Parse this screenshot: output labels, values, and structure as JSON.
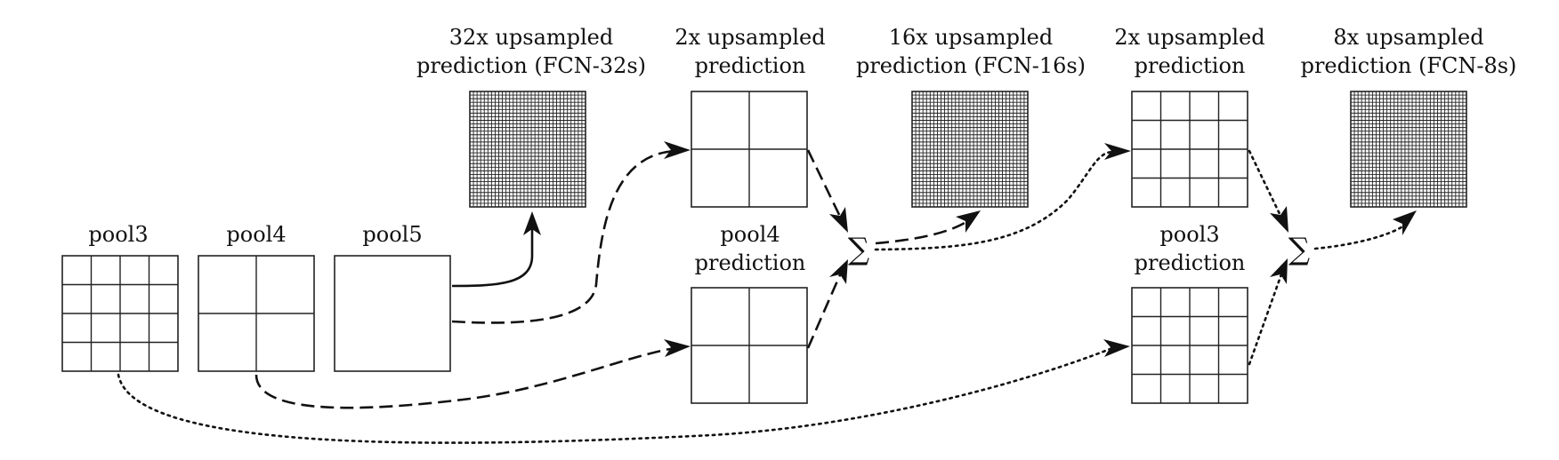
{
  "labels": {
    "pool3": "pool3",
    "pool4": "pool4",
    "pool5": "pool5",
    "fcn32_line1": "32x upsampled",
    "fcn32_line2": "prediction (FCN-32s)",
    "up2a_line1": "2x upsampled",
    "up2a_line2": "prediction",
    "pool4pred_line1": "pool4",
    "pool4pred_line2": "prediction",
    "fcn16_line1": "16x upsampled",
    "fcn16_line2": "prediction (FCN-16s)",
    "up2b_line1": "2x upsampled",
    "up2b_line2": "prediction",
    "pool3pred_line1": "pool3",
    "pool3pred_line2": "prediction",
    "fcn8_line1": "8x upsampled",
    "fcn8_line2": "prediction (FCN-8s)"
  },
  "sum_symbol": "∑",
  "grids": {
    "pool3": 4,
    "pool4": 2,
    "pool5": 1,
    "fcn32": 32,
    "up2a": 2,
    "pool4pred": 2,
    "fcn16": 32,
    "up2b": 4,
    "pool3pred": 4,
    "fcn8": 32
  },
  "connector_styles": {
    "solid": "pool5 path",
    "dashed": "pool4 path",
    "dotted": "pool3 path"
  }
}
